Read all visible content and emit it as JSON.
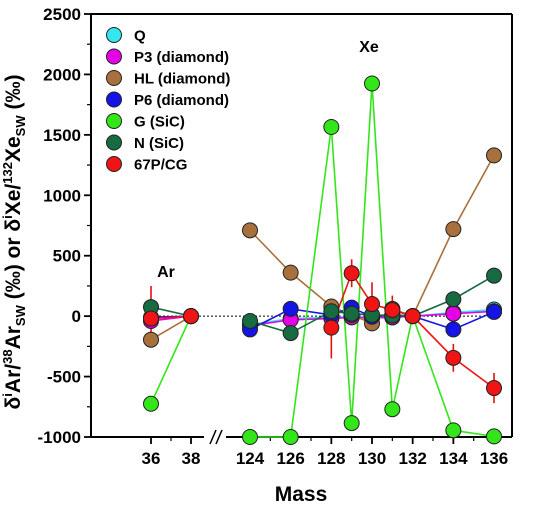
{
  "chart_data": {
    "type": "scatter",
    "title": "",
    "xlabel": "Mass",
    "ylabel_parts": {
      "delta_1": "δ",
      "sup_i_1": "i",
      "ar_1": "Ar/",
      "sup_38": "38",
      "ar_2": "Ar",
      "sub_sw_1": "SW",
      "per_mil_1": " (‰) or ",
      "delta_2": "δ",
      "sup_i_2": "i",
      "xe_1": "Xe/",
      "sup_132": "132",
      "xe_2": "Xe",
      "sub_sw_2": "SW",
      "per_mil_2": " (‰)"
    },
    "ylim": [
      -1000,
      2500
    ],
    "yticks": [
      "2500",
      "2000",
      "1500",
      "1000",
      "500",
      "0",
      "-500",
      "-1000"
    ],
    "xticks": [
      "36",
      "38",
      "124",
      "126",
      "128",
      "130",
      "132",
      "134",
      "136"
    ],
    "annotations": {
      "ar": "Ar",
      "xe": "Xe"
    },
    "axis_break": true,
    "legend_position": "top-left",
    "series": [
      {
        "name": "Q",
        "color": "#33e6f0",
        "ar": [
          [
            36,
            -20
          ],
          [
            38,
            0
          ]
        ],
        "xe": [
          [
            124,
            -70
          ],
          [
            126,
            -20
          ],
          [
            128,
            -10
          ],
          [
            129,
            -5
          ],
          [
            130,
            -10
          ],
          [
            131,
            -10
          ],
          [
            132,
            0
          ],
          [
            134,
            30
          ],
          [
            136,
            55
          ]
        ]
      },
      {
        "name": "P3 (diamond)",
        "color": "#e600e6",
        "ar": [
          [
            36,
            -40
          ],
          [
            38,
            0
          ]
        ],
        "xe": [
          [
            124,
            -80
          ],
          [
            126,
            -30
          ],
          [
            128,
            -20
          ],
          [
            129,
            -10
          ],
          [
            130,
            -15
          ],
          [
            131,
            -10
          ],
          [
            132,
            0
          ],
          [
            134,
            20
          ],
          [
            136,
            40
          ]
        ]
      },
      {
        "name": "HL (diamond)",
        "color": "#a8703c",
        "ar": [
          [
            36,
            -195
          ],
          [
            38,
            0
          ]
        ],
        "xe": [
          [
            124,
            710
          ],
          [
            126,
            360
          ],
          [
            128,
            80
          ],
          [
            129,
            10
          ],
          [
            130,
            -60
          ],
          [
            131,
            60
          ],
          [
            132,
            0
          ],
          [
            134,
            720
          ],
          [
            136,
            1330
          ]
        ]
      },
      {
        "name": "P6 (diamond)",
        "color": "#1414e6",
        "ar": [
          [
            36,
            -10
          ],
          [
            38,
            0
          ]
        ],
        "xe": [
          [
            124,
            -110
          ],
          [
            126,
            60
          ],
          [
            128,
            10
          ],
          [
            129,
            70
          ],
          [
            130,
            -5
          ],
          [
            131,
            10
          ],
          [
            132,
            0
          ],
          [
            134,
            -110
          ],
          [
            136,
            35
          ]
        ]
      },
      {
        "name": "G (SiC)",
        "color": "#33e61a",
        "ar": [
          [
            36,
            -725
          ],
          [
            38,
            0
          ]
        ],
        "xe": [
          [
            124,
            -1000
          ],
          [
            126,
            -1000
          ],
          [
            128,
            1565
          ],
          [
            129,
            -885
          ],
          [
            130,
            1925
          ],
          [
            131,
            -770
          ],
          [
            132,
            0
          ],
          [
            134,
            -945
          ],
          [
            136,
            -995
          ]
        ]
      },
      {
        "name": "N (SiC)",
        "color": "#166b40",
        "ar": [
          [
            36,
            75
          ],
          [
            38,
            0
          ]
        ],
        "xe": [
          [
            124,
            -40
          ],
          [
            126,
            -140
          ],
          [
            128,
            40
          ],
          [
            129,
            20
          ],
          [
            130,
            10
          ],
          [
            131,
            5
          ],
          [
            132,
            0
          ],
          [
            134,
            140
          ],
          [
            136,
            335
          ]
        ]
      },
      {
        "name": "67P/CG",
        "color": "#f01414",
        "ar": [
          [
            36,
            -20
          ],
          [
            38,
            0
          ]
        ],
        "xe": [
          [
            128,
            -95
          ],
          [
            129,
            355
          ],
          [
            130,
            100
          ],
          [
            131,
            50
          ],
          [
            132,
            0
          ],
          [
            134,
            -345
          ],
          [
            136,
            -595
          ]
        ]
      }
    ],
    "error_bars": [
      {
        "x": 36,
        "y": -20,
        "lo": -220,
        "hi": 250
      },
      {
        "x": 128,
        "y": -95,
        "lo": -350,
        "hi": 100
      },
      {
        "x": 129,
        "y": 355,
        "lo": 240,
        "hi": 470
      },
      {
        "x": 130,
        "y": 100,
        "lo": -80,
        "hi": 280
      },
      {
        "x": 131,
        "y": 50,
        "lo": -70,
        "hi": 170
      },
      {
        "x": 134,
        "y": -345,
        "lo": -460,
        "hi": -230
      },
      {
        "x": 136,
        "y": -595,
        "lo": -720,
        "hi": -470
      }
    ],
    "zero_line": "dotted"
  }
}
